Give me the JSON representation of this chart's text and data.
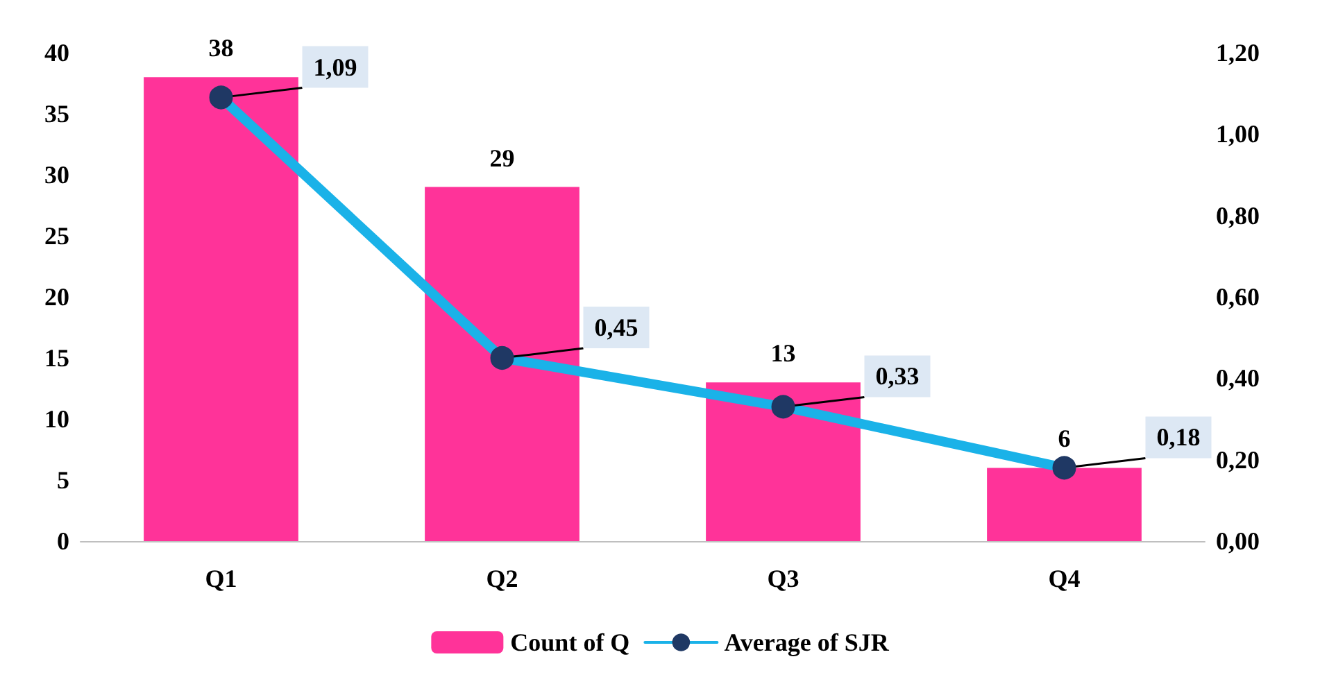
{
  "chart_data": {
    "type": "bar",
    "categories": [
      "Q1",
      "Q2",
      "Q3",
      "Q4"
    ],
    "series": [
      {
        "name": "Count of Q",
        "color": "#ff3399",
        "values": [
          38,
          29,
          13,
          6
        ],
        "value_labels": [
          "38",
          "29",
          "13",
          "6"
        ]
      },
      {
        "name": "Average of SJR",
        "type": "line",
        "axis": "y2",
        "color": "#1ab2e8",
        "values": [
          1.09,
          0.45,
          0.33,
          0.18
        ],
        "value_labels": [
          "1,09",
          "0,45",
          "0,33",
          "0,18"
        ]
      }
    ],
    "ylim": [
      0,
      40
    ],
    "yticks": [
      0,
      5,
      10,
      15,
      20,
      25,
      30,
      35,
      40
    ],
    "y2lim": [
      0,
      1.2
    ],
    "y2ticks": [
      {
        "value": 0,
        "label": "0,00"
      },
      {
        "value": 0.2,
        "label": "0,20"
      },
      {
        "value": 0.4,
        "label": "0,40"
      },
      {
        "value": 0.6,
        "label": "0,60"
      },
      {
        "value": 0.8,
        "label": "0,80"
      },
      {
        "value": 1.0,
        "label": "1,00"
      },
      {
        "value": 1.2,
        "label": "1,20"
      }
    ],
    "grid": false,
    "legend": "bottom",
    "marker": "circle"
  }
}
